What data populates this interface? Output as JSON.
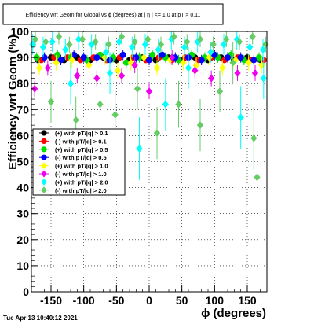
{
  "chart_data": {
    "type": "scatter",
    "title": "Efficiency wrt Geom for Global vs ϕ (degrees) at |  η  | <= 1.0 at pT > 0.11",
    "xlabel": "ϕ (degrees)",
    "ylabel": "Efficiency wrt Geom (%)",
    "xlim": [
      -180,
      180
    ],
    "ylim": [
      0,
      100
    ],
    "x_ticks": [
      -150,
      -100,
      -50,
      0,
      50,
      100,
      150
    ],
    "y_ticks": [
      0,
      10,
      20,
      30,
      40,
      50,
      60,
      70,
      80,
      90,
      100
    ],
    "legend_position": "left-middle",
    "timestamp": "Tue Apr 13 10:40:12 2021",
    "series": [
      {
        "name": "(+) with pT/|q| > 0.1",
        "color": "#000000",
        "marker": "circle",
        "x": [
          -170,
          -150,
          -130,
          -110,
          -90,
          -70,
          -50,
          -30,
          -10,
          10,
          30,
          50,
          70,
          90,
          110,
          130,
          150,
          170
        ],
        "y": [
          89,
          90,
          89,
          90,
          89,
          90,
          89,
          89,
          90,
          89,
          90,
          89,
          90,
          89,
          90,
          89,
          90,
          89
        ],
        "yerr": [
          1,
          1,
          1,
          1,
          1,
          1,
          1,
          1,
          1,
          1,
          1,
          1,
          1,
          1,
          1,
          1,
          1,
          1
        ]
      },
      {
        "name": "(-) with pT/|q| > 0.1",
        "color": "#ff0000",
        "marker": "circle",
        "x": [
          -165,
          -145,
          -125,
          -105,
          -85,
          -65,
          -45,
          -25,
          -5,
          15,
          35,
          55,
          75,
          95,
          115,
          135,
          155,
          175
        ],
        "y": [
          89,
          90,
          90,
          89,
          90,
          89,
          90,
          90,
          89,
          90,
          89,
          90,
          89,
          90,
          89,
          90,
          89,
          89
        ],
        "yerr": [
          1,
          1,
          1,
          1,
          1,
          1,
          1,
          1,
          1,
          1,
          1,
          1,
          1,
          1,
          1,
          1,
          1,
          1
        ]
      },
      {
        "name": "(+) with pT/|q| > 0.5",
        "color": "#00dd00",
        "marker": "circle",
        "x": [
          -172,
          -140,
          -120,
          -95,
          -75,
          -55,
          -35,
          -15,
          5,
          25,
          45,
          65,
          85,
          105,
          125,
          145,
          168
        ],
        "y": [
          90,
          91,
          90,
          89,
          91,
          90,
          88,
          90,
          91,
          90,
          89,
          91,
          90,
          90,
          91,
          89,
          90
        ],
        "yerr": [
          2,
          2,
          2,
          2,
          2,
          2,
          2,
          2,
          2,
          2,
          2,
          2,
          2,
          2,
          2,
          2,
          2
        ]
      },
      {
        "name": "(-) with pT/|q| > 0.5",
        "color": "#0000ff",
        "marker": "circle",
        "x": [
          -160,
          -135,
          -115,
          -100,
          -80,
          -60,
          -40,
          -20,
          0,
          20,
          40,
          60,
          80,
          100,
          120,
          140,
          160
        ],
        "y": [
          90,
          89,
          91,
          90,
          90,
          89,
          91,
          90,
          89,
          91,
          90,
          90,
          89,
          91,
          90,
          90,
          89
        ],
        "yerr": [
          2,
          2,
          2,
          2,
          2,
          2,
          2,
          2,
          2,
          2,
          2,
          2,
          2,
          2,
          2,
          2,
          2
        ]
      },
      {
        "name": "(+) with pT/|q| > 1.0",
        "color": "#ffff00",
        "marker": "diamond",
        "x": [
          -168,
          -142,
          -118,
          -92,
          -68,
          -48,
          -28,
          -8,
          12,
          32,
          52,
          72,
          92,
          112,
          132,
          152,
          172
        ],
        "y": [
          86,
          88,
          89,
          87,
          90,
          85,
          88,
          90,
          86,
          89,
          88,
          87,
          90,
          86,
          89,
          88,
          87
        ],
        "yerr": [
          3,
          3,
          3,
          3,
          3,
          3,
          3,
          3,
          3,
          3,
          3,
          3,
          3,
          3,
          3,
          3,
          3
        ]
      },
      {
        "name": "(-) with pT/|q| > 1.0",
        "color": "#ee00ee",
        "marker": "diamond",
        "x": [
          -175,
          -155,
          -110,
          -80,
          -42,
          -22,
          0,
          35,
          70,
          95,
          135,
          162
        ],
        "y": [
          78,
          86,
          83,
          82,
          83,
          87,
          77,
          90,
          85,
          82,
          84,
          84
        ],
        "yerr": [
          3,
          3,
          3,
          3,
          3,
          3,
          3,
          3,
          3,
          3,
          3,
          3
        ]
      },
      {
        "name": "(+) with pT/|q| > 2.0",
        "color": "#00ffff",
        "marker": "diamond",
        "x": [
          -178,
          -162,
          -148,
          -128,
          -108,
          -88,
          -66,
          -46,
          -26,
          -6,
          14,
          34,
          54,
          74,
          94,
          114,
          134,
          154,
          174,
          -120,
          -60,
          -15,
          25,
          60,
          140,
          175
        ],
        "y": [
          95,
          94,
          96,
          93,
          97,
          95,
          92,
          96,
          94,
          95,
          93,
          97,
          94,
          96,
          92,
          95,
          97,
          94,
          93,
          80,
          84,
          55,
          72,
          86,
          67,
          82
        ],
        "yerr": [
          4,
          4,
          4,
          4,
          4,
          4,
          4,
          4,
          4,
          4,
          4,
          4,
          4,
          4,
          4,
          4,
          4,
          4,
          4,
          8,
          8,
          12,
          10,
          8,
          12,
          8
        ]
      },
      {
        "name": "(-) with pT/|q| > 2.0",
        "color": "#66cc66",
        "marker": "diamond",
        "x": [
          -174,
          -158,
          -138,
          -122,
          -102,
          -82,
          -62,
          -42,
          -22,
          -2,
          18,
          38,
          58,
          78,
          98,
          118,
          138,
          158,
          178,
          -150,
          -112,
          -75,
          -52,
          -18,
          12,
          45,
          78,
          108,
          128,
          160,
          165
        ],
        "y": [
          97,
          96,
          98,
          95,
          97,
          96,
          95,
          98,
          96,
          97,
          95,
          98,
          96,
          97,
          95,
          97,
          96,
          98,
          95,
          73,
          66,
          72,
          68,
          78,
          61,
          72,
          64,
          77,
          88,
          59,
          44
        ],
        "yerr": [
          3,
          3,
          3,
          3,
          3,
          3,
          3,
          3,
          3,
          3,
          3,
          3,
          3,
          3,
          3,
          3,
          3,
          3,
          3,
          8,
          9,
          8,
          9,
          8,
          10,
          9,
          10,
          8,
          8,
          12,
          10
        ]
      }
    ]
  }
}
